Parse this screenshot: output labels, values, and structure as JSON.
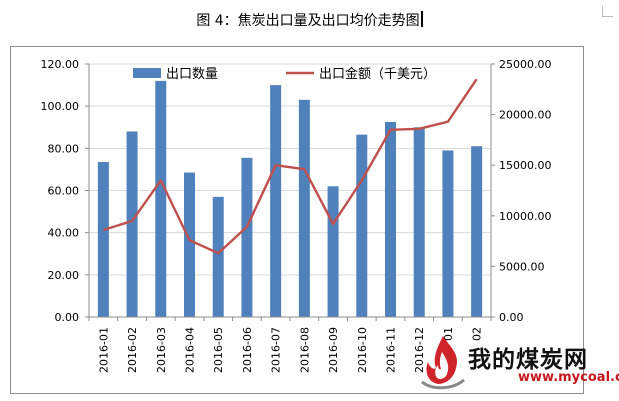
{
  "caption": {
    "text": "图 4：焦炭出口量及出口均价走势图"
  },
  "watermark": {
    "brand": "我的煤炭网",
    "url": "www.mycoal.cn"
  },
  "colors": {
    "bar": "#4f81bd",
    "line": "#c0504d",
    "axis": "#8c8c8c",
    "grid": "#d9d9d9"
  },
  "chart_data": {
    "type": "bar+line",
    "categories": [
      "2016-01",
      "2016-02",
      "2016-03",
      "2016-04",
      "2016-05",
      "2016-06",
      "2016-07",
      "2016-08",
      "2016-09",
      "2016-10",
      "2016-11",
      "2016-12",
      "2017-01",
      "2017-02"
    ],
    "category_labels": [
      "2016-01",
      "2016-02",
      "2016-03",
      "2016-04",
      "2016-05",
      "2016-06",
      "2016-07",
      "2016-08",
      "2016-09",
      "2016-10",
      "2016-11",
      "2016-12",
      "01",
      "02"
    ],
    "series": [
      {
        "name": "出口数量",
        "type": "bar",
        "axis": "left",
        "values": [
          73.5,
          88.0,
          112.0,
          68.5,
          57.0,
          75.5,
          110.0,
          103.0,
          62.0,
          86.5,
          92.5,
          90.0,
          79.0,
          81.0
        ]
      },
      {
        "name": "出口金额（千美元）",
        "type": "line",
        "axis": "right",
        "values": [
          8600,
          9500,
          13500,
          7600,
          6300,
          8900,
          15000,
          14600,
          9200,
          13500,
          18500,
          18600,
          19300,
          23500
        ]
      }
    ],
    "y_left": {
      "min": 0,
      "max": 120,
      "step": 20,
      "tick_labels": [
        "0.00",
        "20.00",
        "40.00",
        "60.00",
        "80.00",
        "100.00",
        "120.00"
      ]
    },
    "y_right": {
      "min": 0,
      "max": 25000,
      "step": 5000,
      "tick_labels": [
        "0.00",
        "5000.00",
        "10000.00",
        "15000.00",
        "20000.00",
        "25000.00"
      ]
    },
    "grid": true,
    "legend_position": "top"
  }
}
